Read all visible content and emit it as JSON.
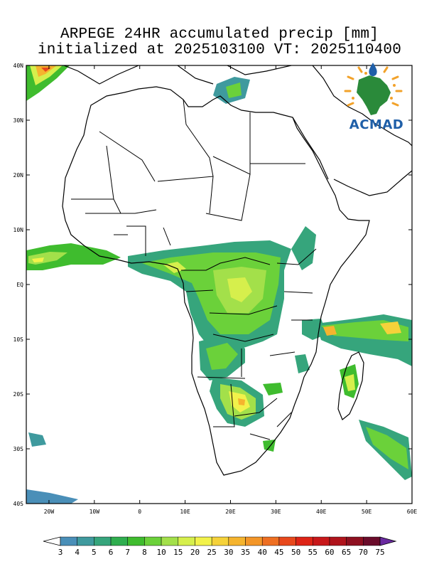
{
  "title": {
    "line1": "ARPEGE 24HR accumulated precip [mm]",
    "line2": "initialized at 2025103100 VT: 2025110400"
  },
  "map": {
    "lat_labels": [
      "40N",
      "30N",
      "20N",
      "10N",
      "EQ",
      "10S",
      "20S",
      "30S",
      "40S"
    ],
    "lon_labels": [
      "20W",
      "10W",
      "0",
      "10E",
      "20E",
      "30E",
      "40E",
      "50E",
      "60E"
    ],
    "lon_range": [
      -25,
      60
    ],
    "lat_range": [
      -40,
      40
    ]
  },
  "colorbar": {
    "labels": [
      "3",
      "4",
      "5",
      "6",
      "7",
      "8",
      "10",
      "15",
      "20",
      "25",
      "30",
      "35",
      "40",
      "45",
      "50",
      "55",
      "60",
      "65",
      "70",
      "75"
    ],
    "colors": [
      "#4a8fb8",
      "#3f9a9e",
      "#36a57c",
      "#2fae4f",
      "#3fbc2e",
      "#6bd13a",
      "#a3e04a",
      "#d6ef4c",
      "#f2f24a",
      "#f5d23a",
      "#f5b42e",
      "#f39628",
      "#ee6f22",
      "#e8481c",
      "#de2416",
      "#c8181a",
      "#b0141c",
      "#8e1020",
      "#6a0c2a",
      "#6a2aa0"
    ]
  },
  "logo": {
    "text": "ACMAD"
  }
}
